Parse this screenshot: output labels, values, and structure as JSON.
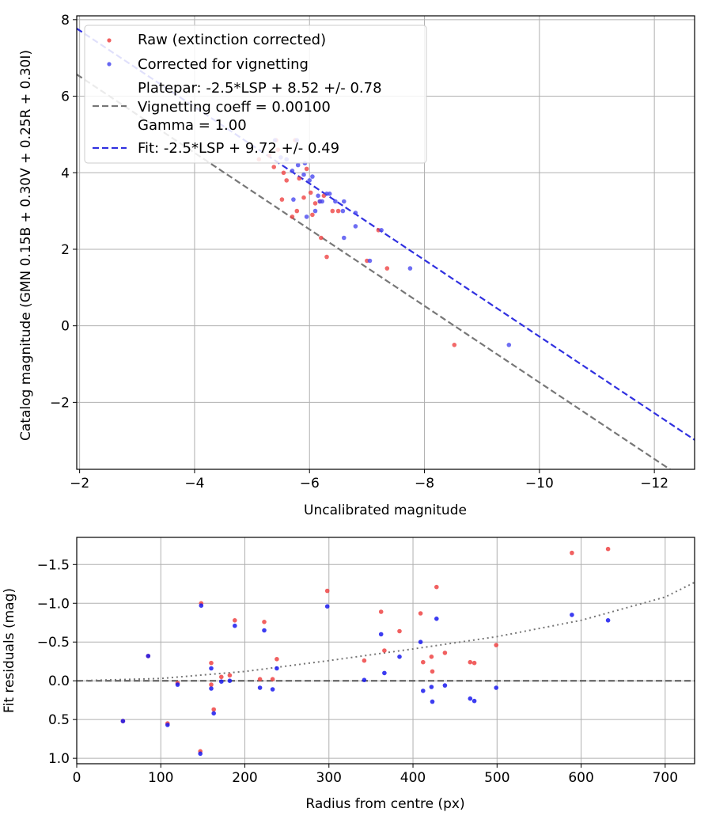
{
  "chart_data": [
    {
      "type": "scatter",
      "xlabel": "Uncalibrated magnitude",
      "ylabel": "Catalog magnitude (GMN 0.15B + 0.30V + 0.25R + 0.30I)",
      "xlim": [
        -1.95,
        -12.7
      ],
      "ylim": [
        8.1,
        -3.75
      ],
      "xticks": [
        -2,
        -4,
        -6,
        -8,
        -10,
        -12
      ],
      "xtick_labels": [
        "−2",
        "−4",
        "−6",
        "−8",
        "−10",
        "−12"
      ],
      "yticks": [
        -2,
        0,
        2,
        4,
        6,
        8
      ],
      "ytick_labels": [
        "−2",
        "0",
        "2",
        "4",
        "6",
        "8"
      ],
      "grid": true,
      "legend": {
        "position": "top-left",
        "entries": [
          {
            "label": "Raw (extinction corrected)",
            "kind": "marker",
            "color": "#ef4444"
          },
          {
            "label": "Corrected for vignetting",
            "kind": "marker",
            "color": "#4a4af0"
          },
          {
            "label_lines": [
              "Platepar: -2.5*LSP + 8.52 +/- 0.78",
              "Vignetting coeff = 0.00100",
              "Gamma = 1.00"
            ],
            "kind": "dashed",
            "color": "#777777"
          },
          {
            "label": "Fit: -2.5*LSP + 9.72 +/- 0.49",
            "kind": "dashed",
            "color": "#3030e0"
          }
        ]
      },
      "lines": [
        {
          "name": "Platepar",
          "x": [
            -1.95,
            -12.7
          ],
          "y": [
            6.57,
            -4.18
          ],
          "color": "#777777",
          "dash": "dashed"
        },
        {
          "name": "Fit",
          "x": [
            -1.95,
            -12.7
          ],
          "y": [
            7.77,
            -2.98
          ],
          "color": "#3030e0",
          "dash": "dashed"
        }
      ],
      "series": [
        {
          "name": "Raw (extinction corrected)",
          "color": "#ef4444",
          "x": [
            -8.52,
            -6.3,
            -6.2,
            -7.0,
            -7.35,
            -7.2,
            -5.7,
            -5.78,
            -6.1,
            -5.9,
            -6.02,
            -6.18,
            -6.4,
            -6.5,
            -5.52,
            -5.6,
            -5.38,
            -5.12,
            -5.3,
            -5.45,
            -5.42,
            -5.75,
            -5.82,
            -5.95,
            -6.25,
            -5.55,
            -6.05
          ],
          "y": [
            -0.5,
            1.8,
            2.3,
            1.7,
            1.5,
            2.5,
            2.85,
            3.0,
            3.2,
            3.35,
            3.48,
            3.25,
            3.0,
            3.0,
            3.3,
            3.8,
            4.15,
            4.35,
            4.45,
            4.6,
            4.85,
            4.85,
            3.85,
            4.1,
            3.4,
            4.0,
            2.9
          ]
        },
        {
          "name": "Corrected for vignetting",
          "color": "#4a4af0",
          "x": [
            -9.47,
            -7.75,
            -7.05,
            -7.25,
            -6.6,
            -6.8,
            -6.8,
            -6.58,
            -6.45,
            -6.35,
            -6.22,
            -6.1,
            -5.95,
            -6.0,
            -6.05,
            -5.9,
            -5.7,
            -5.8,
            -5.72,
            -5.6,
            -5.5,
            -5.78,
            -5.4,
            -6.15,
            -5.92,
            -6.6,
            -6.3,
            -6.18
          ],
          "y": [
            -0.5,
            1.5,
            1.7,
            2.5,
            2.3,
            2.6,
            2.95,
            3.0,
            3.25,
            3.45,
            3.25,
            3.0,
            2.85,
            3.8,
            3.9,
            3.95,
            4.05,
            4.2,
            3.3,
            4.35,
            4.4,
            4.85,
            4.85,
            3.4,
            4.25,
            3.25,
            3.45,
            3.25
          ]
        }
      ]
    },
    {
      "type": "scatter",
      "xlabel": "Radius from centre (px)",
      "ylabel": "Fit residuals (mag)",
      "xlim": [
        0,
        735
      ],
      "ylim": [
        -1.85,
        1.07
      ],
      "xticks": [
        0,
        100,
        200,
        300,
        400,
        500,
        600,
        700
      ],
      "xtick_labels": [
        "0",
        "100",
        "200",
        "300",
        "400",
        "500",
        "600",
        "700"
      ],
      "yticks": [
        1.0,
        0.5,
        0.0,
        -0.5,
        -1.0,
        -1.5
      ],
      "ytick_labels": [
        "1.0",
        "0.5",
        "0.0",
        "−0.5",
        "−1.0",
        "−1.5"
      ],
      "grid": true,
      "reference_lines": [
        {
          "name": "zero",
          "y": 0.0,
          "color": "#555555",
          "dash": "dashed"
        },
        {
          "name": "vignetting model",
          "x": [
            0,
            100,
            200,
            300,
            400,
            500,
            600,
            700,
            735
          ],
          "y": [
            0,
            -0.03,
            -0.12,
            -0.26,
            -0.41,
            -0.57,
            -0.78,
            -1.08,
            -1.27
          ],
          "color": "#777777",
          "dash": "dotted"
        }
      ],
      "series": [
        {
          "name": "Raw (extinction corrected)",
          "color": "#ef4444",
          "x": [
            55,
            85,
            108,
            120,
            147,
            148,
            160,
            160,
            163,
            172,
            182,
            188,
            218,
            223,
            233,
            238,
            298,
            342,
            362,
            366,
            384,
            409,
            412,
            422,
            423,
            428,
            438,
            468,
            473,
            499,
            589,
            632
          ],
          "y": [
            0.52,
            -0.32,
            0.55,
            0.03,
            0.91,
            -1.0,
            0.05,
            -0.23,
            0.37,
            -0.05,
            -0.07,
            -0.78,
            -0.02,
            -0.76,
            -0.02,
            -0.28,
            -1.16,
            -0.26,
            -0.89,
            -0.39,
            -0.64,
            -0.87,
            -0.24,
            -0.31,
            -0.12,
            -1.21,
            -0.36,
            -0.24,
            -0.23,
            -0.46,
            -1.65,
            -1.7
          ]
        },
        {
          "name": "Corrected for vignetting",
          "color": "#1a1aee",
          "x": [
            55,
            85,
            108,
            120,
            147,
            148,
            160,
            160,
            163,
            172,
            182,
            188,
            218,
            223,
            233,
            238,
            298,
            342,
            362,
            366,
            384,
            409,
            412,
            422,
            423,
            428,
            438,
            468,
            473,
            499,
            589,
            632
          ],
          "y": [
            0.52,
            -0.32,
            0.57,
            0.05,
            0.94,
            -0.97,
            0.1,
            -0.16,
            0.42,
            0.01,
            0.0,
            -0.71,
            0.09,
            -0.65,
            0.11,
            -0.16,
            -0.96,
            -0.01,
            -0.6,
            -0.1,
            -0.31,
            -0.5,
            0.13,
            0.08,
            0.27,
            -0.8,
            0.06,
            0.23,
            0.26,
            0.09,
            -0.85,
            -0.78
          ]
        }
      ]
    }
  ]
}
